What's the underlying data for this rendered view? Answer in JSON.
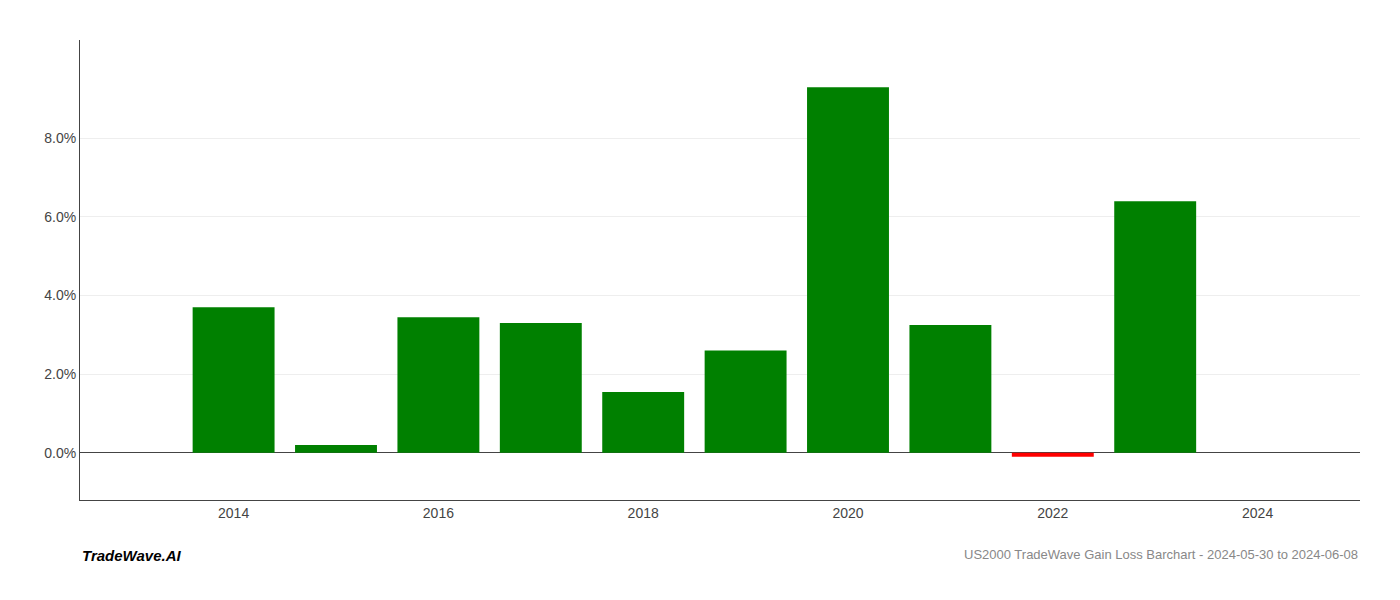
{
  "chart_data": {
    "type": "bar",
    "x": [
      2014,
      2015,
      2016,
      2017,
      2018,
      2019,
      2020,
      2021,
      2022,
      2023
    ],
    "values": [
      0.037,
      0.002,
      0.0345,
      0.033,
      0.0155,
      0.026,
      0.093,
      0.0325,
      -0.001,
      0.064
    ],
    "colors": [
      "#008000",
      "#008000",
      "#008000",
      "#008000",
      "#008000",
      "#008000",
      "#008000",
      "#008000",
      "#FF0000",
      "#008000"
    ],
    "xlim": [
      2012.5,
      2025.0
    ],
    "xticks": [
      2014,
      2016,
      2018,
      2020,
      2022,
      2024
    ],
    "ylim": [
      -0.012,
      0.105
    ],
    "yticks": [
      {
        "value": 0.0,
        "label": "0.0%"
      },
      {
        "value": 0.02,
        "label": "2.0%"
      },
      {
        "value": 0.04,
        "label": "4.0%"
      },
      {
        "value": 0.06,
        "label": "6.0%"
      },
      {
        "value": 0.08,
        "label": "8.0%"
      }
    ],
    "grid": "y",
    "annotations": [
      "TradeWave.AI",
      "US2000 TradeWave Gain Loss Barchart - 2024-05-30 to 2024-06-08"
    ]
  }
}
